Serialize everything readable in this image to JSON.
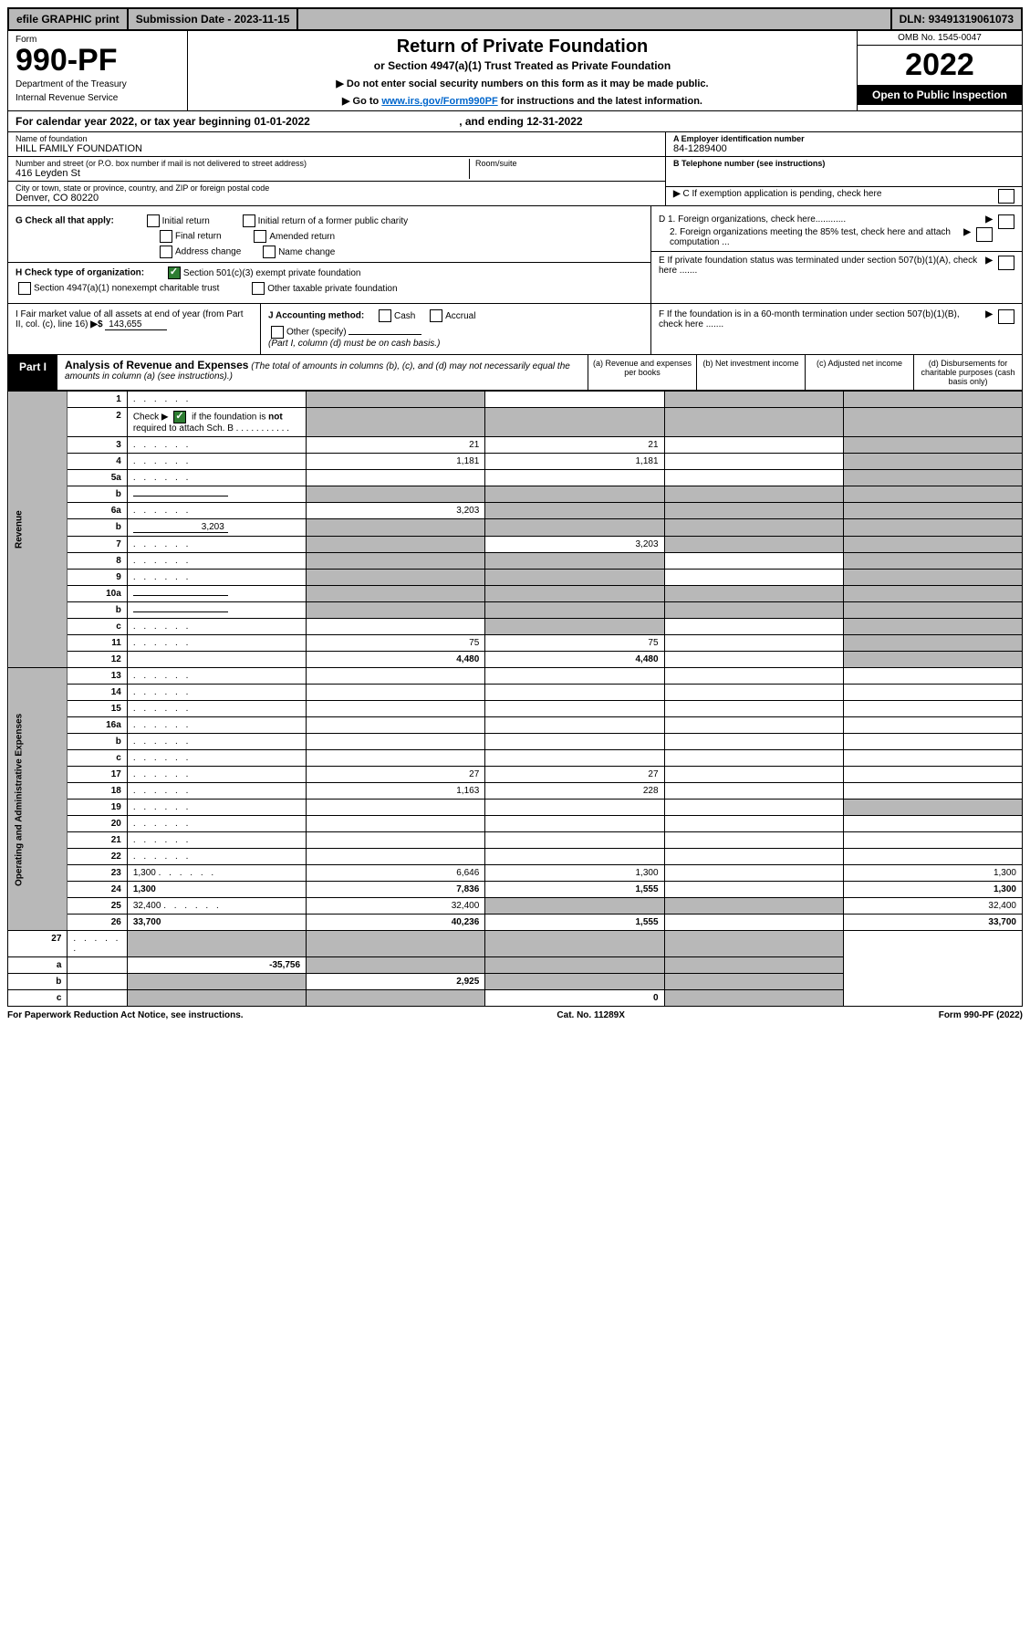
{
  "topbar": {
    "efile": "efile GRAPHIC print",
    "submission_label": "Submission Date - ",
    "submission_date": "2023-11-15",
    "dln_label": "DLN: ",
    "dln": "93491319061073"
  },
  "header": {
    "form_label": "Form",
    "form_number": "990-PF",
    "dept": "Department of the Treasury",
    "irs": "Internal Revenue Service",
    "title": "Return of Private Foundation",
    "subtitle": "or Section 4947(a)(1) Trust Treated as Private Foundation",
    "warn": "▶ Do not enter social security numbers on this form as it may be made public.",
    "goto_prefix": "▶ Go to ",
    "goto_link": "www.irs.gov/Form990PF",
    "goto_suffix": " for instructions and the latest information.",
    "omb": "OMB No. 1545-0047",
    "year": "2022",
    "open": "Open to Public Inspection"
  },
  "calendar": {
    "prefix": "For calendar year 2022, or tax year beginning ",
    "begin": "01-01-2022",
    "mid": " , and ending ",
    "end": "12-31-2022"
  },
  "foundation": {
    "name_label": "Name of foundation",
    "name": "HILL FAMILY FOUNDATION",
    "street_label": "Number and street (or P.O. box number if mail is not delivered to street address)",
    "street": "416 Leyden St",
    "room_label": "Room/suite",
    "room": "",
    "city_label": "City or town, state or province, country, and ZIP or foreign postal code",
    "city": "Denver, CO  80220"
  },
  "right_info": {
    "a_label": "A Employer identification number",
    "a_value": "84-1289400",
    "b_label": "B Telephone number (see instructions)",
    "b_value": "",
    "c_label": "C If exemption application is pending, check here",
    "d1_label": "D 1. Foreign organizations, check here............",
    "d2_label": "2. Foreign organizations meeting the 85% test, check here and attach computation ...",
    "e_label": "E If private foundation status was terminated under section 507(b)(1)(A), check here .......",
    "f_label": "F  If the foundation is in a 60-month termination under section 507(b)(1)(B), check here ......."
  },
  "g_section": {
    "label": "G Check all that apply:",
    "opts": [
      "Initial return",
      "Initial return of a former public charity",
      "Final return",
      "Amended return",
      "Address change",
      "Name change"
    ]
  },
  "h_section": {
    "label": "H Check type of organization:",
    "opt1": "Section 501(c)(3) exempt private foundation",
    "opt2": "Section 4947(a)(1) nonexempt charitable trust",
    "opt3": "Other taxable private foundation"
  },
  "i_section": {
    "label": "I Fair market value of all assets at end of year (from Part II, col. (c), line 16)",
    "value": "143,655"
  },
  "j_section": {
    "label": "J Accounting method:",
    "cash": "Cash",
    "accrual": "Accrual",
    "other": "Other (specify)",
    "note": "(Part I, column (d) must be on cash basis.)"
  },
  "part1": {
    "label": "Part I",
    "title": "Analysis of Revenue and Expenses",
    "title_note": "(The total of amounts in columns (b), (c), and (d) may not necessarily equal the amounts in column (a) (see instructions).)",
    "col_a": "(a) Revenue and expenses per books",
    "col_b": "(b) Net investment income",
    "col_c": "(c) Adjusted net income",
    "col_d": "(d) Disbursements for charitable purposes (cash basis only)"
  },
  "sides": {
    "revenue": "Revenue",
    "expenses": "Operating and Administrative Expenses"
  },
  "rows": [
    {
      "n": "1",
      "d": "",
      "a": "",
      "b": "",
      "c": "",
      "sa": true,
      "sc": true,
      "sd": true
    },
    {
      "n": "2",
      "d": "",
      "a": "",
      "b": "",
      "c": "",
      "sa": true,
      "sb": true,
      "sc": true,
      "sd": true,
      "checked": true
    },
    {
      "n": "3",
      "d": "",
      "a": "21",
      "b": "21",
      "c": "",
      "sd": true
    },
    {
      "n": "4",
      "d": "",
      "a": "1,181",
      "b": "1,181",
      "c": "",
      "sd": true
    },
    {
      "n": "5a",
      "d": "",
      "a": "",
      "b": "",
      "c": "",
      "sd": true
    },
    {
      "n": "b",
      "d": "",
      "a": "",
      "b": "",
      "c": "",
      "sa": true,
      "sb": true,
      "sc": true,
      "sd": true,
      "fill": true
    },
    {
      "n": "6a",
      "d": "",
      "a": "3,203",
      "b": "",
      "c": "",
      "sb": true,
      "sc": true,
      "sd": true
    },
    {
      "n": "b",
      "d": "",
      "a": "",
      "b": "",
      "c": "",
      "sa": true,
      "sb": true,
      "sc": true,
      "sd": true,
      "fill": true,
      "fillval": "3,203"
    },
    {
      "n": "7",
      "d": "",
      "a": "",
      "b": "3,203",
      "c": "",
      "sa": true,
      "sc": true,
      "sd": true
    },
    {
      "n": "8",
      "d": "",
      "a": "",
      "b": "",
      "c": "",
      "sa": true,
      "sb": true,
      "sd": true
    },
    {
      "n": "9",
      "d": "",
      "a": "",
      "b": "",
      "c": "",
      "sa": true,
      "sb": true,
      "sd": true
    },
    {
      "n": "10a",
      "d": "",
      "a": "",
      "b": "",
      "c": "",
      "sa": true,
      "sb": true,
      "sc": true,
      "sd": true,
      "fill": true
    },
    {
      "n": "b",
      "d": "",
      "a": "",
      "b": "",
      "c": "",
      "sa": true,
      "sb": true,
      "sc": true,
      "sd": true,
      "fill": true
    },
    {
      "n": "c",
      "d": "",
      "a": "",
      "b": "",
      "c": "",
      "sb": true,
      "sd": true
    },
    {
      "n": "11",
      "d": "",
      "a": "75",
      "b": "75",
      "c": "",
      "sd": true
    },
    {
      "n": "12",
      "d": "",
      "a": "4,480",
      "b": "4,480",
      "c": "",
      "sd": true,
      "bold": true
    }
  ],
  "exp_rows": [
    {
      "n": "13",
      "d": "",
      "a": "",
      "b": "",
      "c": ""
    },
    {
      "n": "14",
      "d": "",
      "a": "",
      "b": "",
      "c": ""
    },
    {
      "n": "15",
      "d": "",
      "a": "",
      "b": "",
      "c": ""
    },
    {
      "n": "16a",
      "d": "",
      "a": "",
      "b": "",
      "c": ""
    },
    {
      "n": "b",
      "d": "",
      "a": "",
      "b": "",
      "c": ""
    },
    {
      "n": "c",
      "d": "",
      "a": "",
      "b": "",
      "c": ""
    },
    {
      "n": "17",
      "d": "",
      "a": "27",
      "b": "27",
      "c": ""
    },
    {
      "n": "18",
      "d": "",
      "a": "1,163",
      "b": "228",
      "c": ""
    },
    {
      "n": "19",
      "d": "",
      "a": "",
      "b": "",
      "c": "",
      "sd": true
    },
    {
      "n": "20",
      "d": "",
      "a": "",
      "b": "",
      "c": ""
    },
    {
      "n": "21",
      "d": "",
      "a": "",
      "b": "",
      "c": ""
    },
    {
      "n": "22",
      "d": "",
      "a": "",
      "b": "",
      "c": ""
    },
    {
      "n": "23",
      "d": "1,300",
      "a": "6,646",
      "b": "1,300",
      "c": ""
    },
    {
      "n": "24",
      "d": "1,300",
      "a": "7,836",
      "b": "1,555",
      "c": "",
      "bold": true
    },
    {
      "n": "25",
      "d": "32,400",
      "a": "32,400",
      "b": "",
      "c": "",
      "sb": true,
      "sc": true
    },
    {
      "n": "26",
      "d": "33,700",
      "a": "40,236",
      "b": "1,555",
      "c": "",
      "bold": true
    }
  ],
  "bottom_rows": [
    {
      "n": "27",
      "d": "",
      "a": "",
      "b": "",
      "c": "",
      "sa": true,
      "sb": true,
      "sc": true,
      "sd": true
    },
    {
      "n": "a",
      "d": "",
      "a": "-35,756",
      "b": "",
      "c": "",
      "sb": true,
      "sc": true,
      "sd": true,
      "bold": true
    },
    {
      "n": "b",
      "d": "",
      "a": "",
      "b": "2,925",
      "c": "",
      "sa": true,
      "sc": true,
      "sd": true,
      "bold": true
    },
    {
      "n": "c",
      "d": "",
      "a": "",
      "b": "",
      "c": "0",
      "sa": true,
      "sb": true,
      "sd": true,
      "bold": true
    }
  ],
  "footer": {
    "left": "For Paperwork Reduction Act Notice, see instructions.",
    "center": "Cat. No. 11289X",
    "right": "Form 990-PF (2022)"
  }
}
